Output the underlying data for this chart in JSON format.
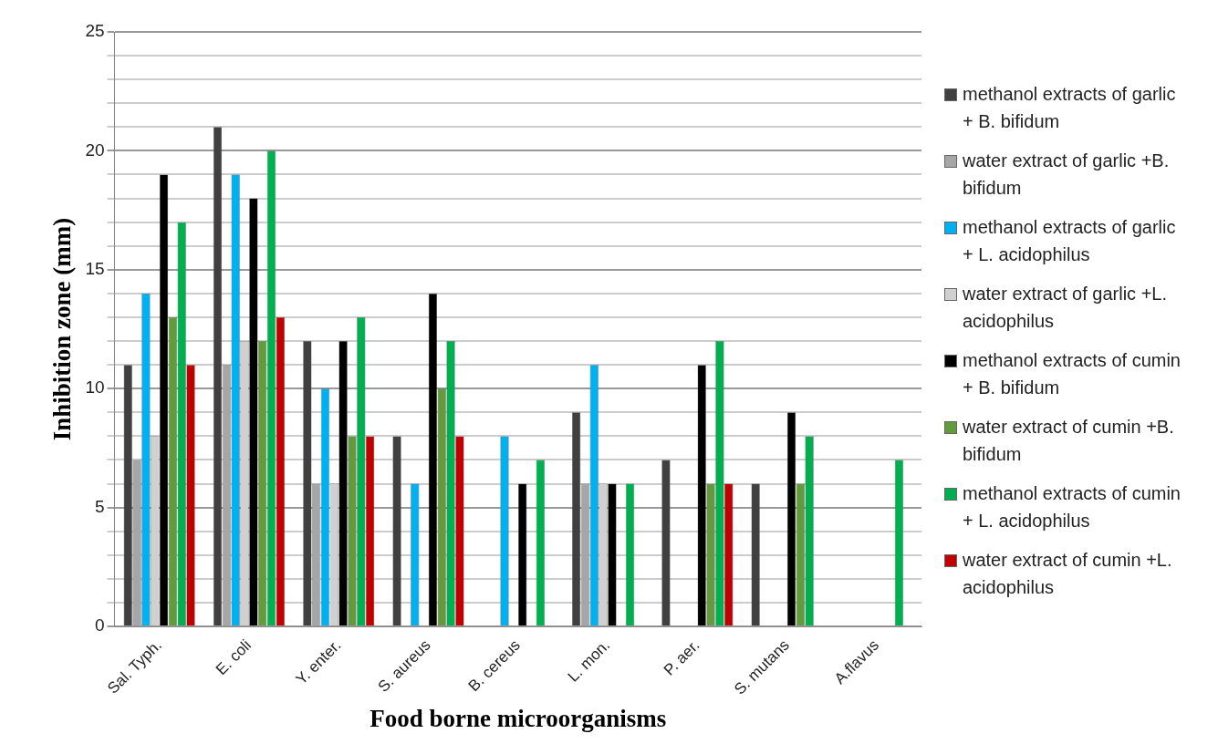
{
  "chart_data": {
    "type": "bar",
    "xlabel": "Food borne microorganisms",
    "ylabel": "Inhibition zone (mm)",
    "categories": [
      "Sal. Typh.",
      "E. coli",
      "Y. enter.",
      "S. aureus",
      "B. cereus",
      "L. mon.",
      "P. aer.",
      "S. mutans",
      "A.flavus"
    ],
    "series": [
      {
        "name": "methanol extracts of garlic + B. bifidum",
        "color": "#404040",
        "values": [
          11,
          21,
          12,
          8,
          0,
          9,
          7,
          6,
          0
        ]
      },
      {
        "name": "water extract of garlic +B. bifidum",
        "color": "#a6a6a6",
        "values": [
          7,
          11,
          6,
          0,
          0,
          6,
          0,
          0,
          0
        ]
      },
      {
        "name": "methanol extracts of garlic + L. acidophilus",
        "color": "#00b0f0",
        "values": [
          14,
          19,
          10,
          6,
          8,
          11,
          0,
          0,
          0
        ]
      },
      {
        "name": "water extract of garlic +L. acidophilus",
        "color": "#d0d0d0",
        "values": [
          8,
          12,
          6,
          0,
          0,
          6,
          0,
          0,
          0
        ]
      },
      {
        "name": "methanol extracts of cumin + B. bifidum",
        "color": "#000000",
        "values": [
          19,
          18,
          12,
          14,
          6,
          6,
          11,
          9,
          0
        ]
      },
      {
        "name": "water extract of cumin +B. bifidum",
        "color": "#629a3d",
        "values": [
          13,
          12,
          8,
          10,
          0,
          0,
          6,
          6,
          0
        ]
      },
      {
        "name": "methanol extracts of cumin + L. acidophilus",
        "color": "#00b050",
        "values": [
          17,
          20,
          13,
          12,
          7,
          6,
          12,
          8,
          7
        ]
      },
      {
        "name": "water extract of cumin +L. acidophilus",
        "color": "#c00000",
        "values": [
          11,
          13,
          8,
          8,
          0,
          0,
          6,
          0,
          0
        ]
      }
    ],
    "ylim": [
      0,
      25
    ],
    "yticks": [
      0,
      {
        "value": 1,
        "label": null
      },
      {
        "value": 2,
        "label": null
      },
      {
        "value": 3,
        "label": null
      },
      {
        "value": 4,
        "label": null
      },
      5,
      {
        "value": 6,
        "label": null
      },
      {
        "value": 7,
        "label": null
      },
      {
        "value": 8,
        "label": null
      },
      {
        "value": 9,
        "label": null
      },
      10,
      {
        "value": 11,
        "label": null
      },
      {
        "value": 12,
        "label": null
      },
      {
        "value": 13,
        "label": null
      },
      {
        "value": 14,
        "label": null
      },
      15,
      {
        "value": 16,
        "label": null
      },
      {
        "value": 17,
        "label": null
      },
      {
        "value": 18,
        "label": null
      },
      {
        "value": 19,
        "label": null
      },
      20,
      {
        "value": 21,
        "label": null
      },
      {
        "value": 22,
        "label": null
      },
      {
        "value": 23,
        "label": null
      },
      {
        "value": 24,
        "label": null
      },
      25
    ],
    "grid": "y",
    "legend": "right"
  }
}
